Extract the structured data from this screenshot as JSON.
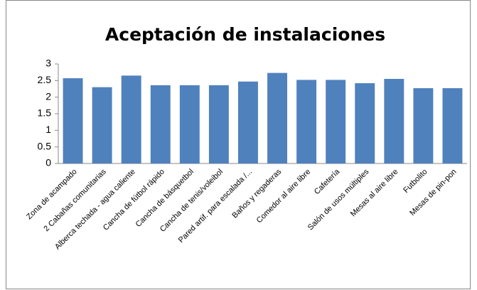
{
  "chart_data": {
    "type": "bar",
    "title": "Aceptación de instalaciones",
    "categories": [
      "Zona de acampado",
      "2 Cabañas comunitarias",
      "Alberca techada - agua caliente",
      "Cancha de fútbol rápido",
      "Cancha de básquetbol",
      "Cancha de tenis/voleibol",
      "Pared artif. para escalada /...",
      "Baños y regaderas",
      "Comedor al aire libre",
      "Cafetería",
      "Salón de usos múltiples",
      "Mesas al aire libre",
      "Futbolito",
      "Mesas de pin-pon"
    ],
    "values": [
      2.57,
      2.3,
      2.65,
      2.36,
      2.36,
      2.36,
      2.47,
      2.73,
      2.52,
      2.52,
      2.42,
      2.55,
      2.27,
      2.27
    ],
    "color": "#4f81bd",
    "ylim": [
      0,
      3
    ],
    "yticks": [
      0,
      0.5,
      1,
      1.5,
      2,
      2.5,
      3
    ],
    "grid": false
  }
}
